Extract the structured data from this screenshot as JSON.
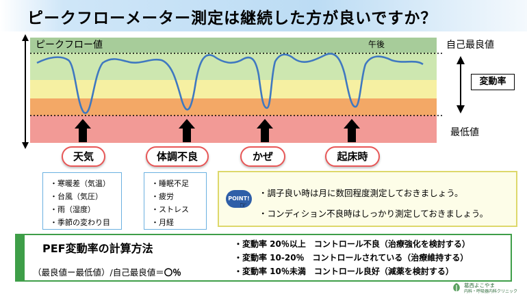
{
  "title": "ピークフローメーター測定は継続した方が良いですか？",
  "chart": {
    "y_label": "ピークフロー値",
    "afternoon_label": "午後",
    "personal_best_label": "自己最良値",
    "variability_label": "変動率",
    "lowest_label": "最低値",
    "zone_colors": [
      "#a7cc9a",
      "#cde7b0",
      "#f6f0a2",
      "#f9d77e",
      "#f3a866",
      "#f29a96"
    ]
  },
  "causes": [
    {
      "label": "天気"
    },
    {
      "label": "体調不良"
    },
    {
      "label": "かぜ"
    },
    {
      "label": "起床時"
    }
  ],
  "weather_examples": [
    "・寒暖差（気温）",
    "・台風（気圧）",
    "・雨（湿度）",
    "・季節の変わり目"
  ],
  "condition_examples": [
    "・睡眠不足",
    "・疲労",
    "・ストレス",
    "・月経"
  ],
  "advice": {
    "badge": "POINT!",
    "lines": [
      "・調子良い時は月に数回程度測定しておきましょう。",
      "・コンディション不良時はしっかり測定しておきましょう。"
    ]
  },
  "calculation": {
    "title": "PEF変動率の計算方法",
    "formula": "（最良値ー最低値）/自己最良値＝",
    "result": "〇％",
    "ranges": [
      "・変動率 20％以上　コントロール不良（治療強化を検討する）",
      "・変動率 10-20％　コントロールされている（治療維持する）",
      "・変動率 10％未満　コントロール良好（減薬を検討する）"
    ]
  },
  "logo": {
    "name": "葛西よこやま",
    "subtitle": "内科・呼吸器内科クリニック"
  }
}
